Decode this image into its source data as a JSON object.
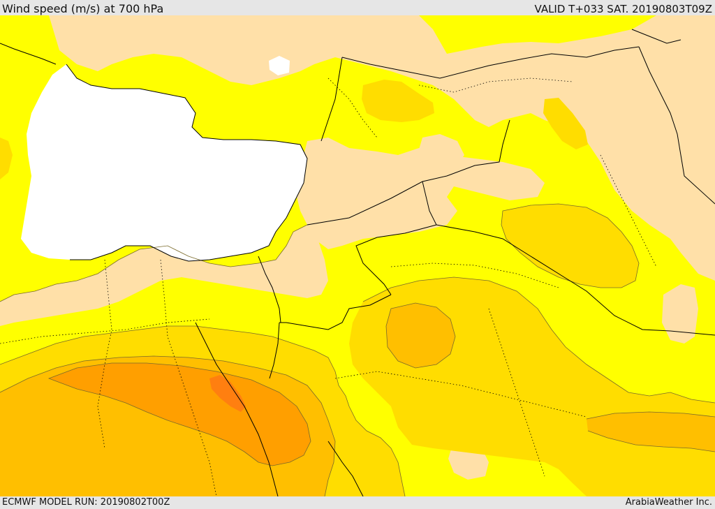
{
  "header": {
    "title": "Wind speed (m/s) at 700 hPa",
    "valid_time": "VALID T+033 SAT. 20190803T09Z"
  },
  "footer": {
    "model_run": "ECMWF MODEL RUN: 20190802T00Z",
    "credit": "ArabiaWeather Inc."
  },
  "map": {
    "colors": {
      "below_lowest": "#ffffff",
      "band_1": "#ffe0a8",
      "band_2": "#ffff00",
      "band_3": "#ffdd00",
      "band_4": "#ffbf00",
      "band_5": "#ff9f00",
      "band_6": "#ff7f10",
      "contour": "#7a6a2a",
      "coastline": "#000000",
      "border": "#000000"
    }
  }
}
